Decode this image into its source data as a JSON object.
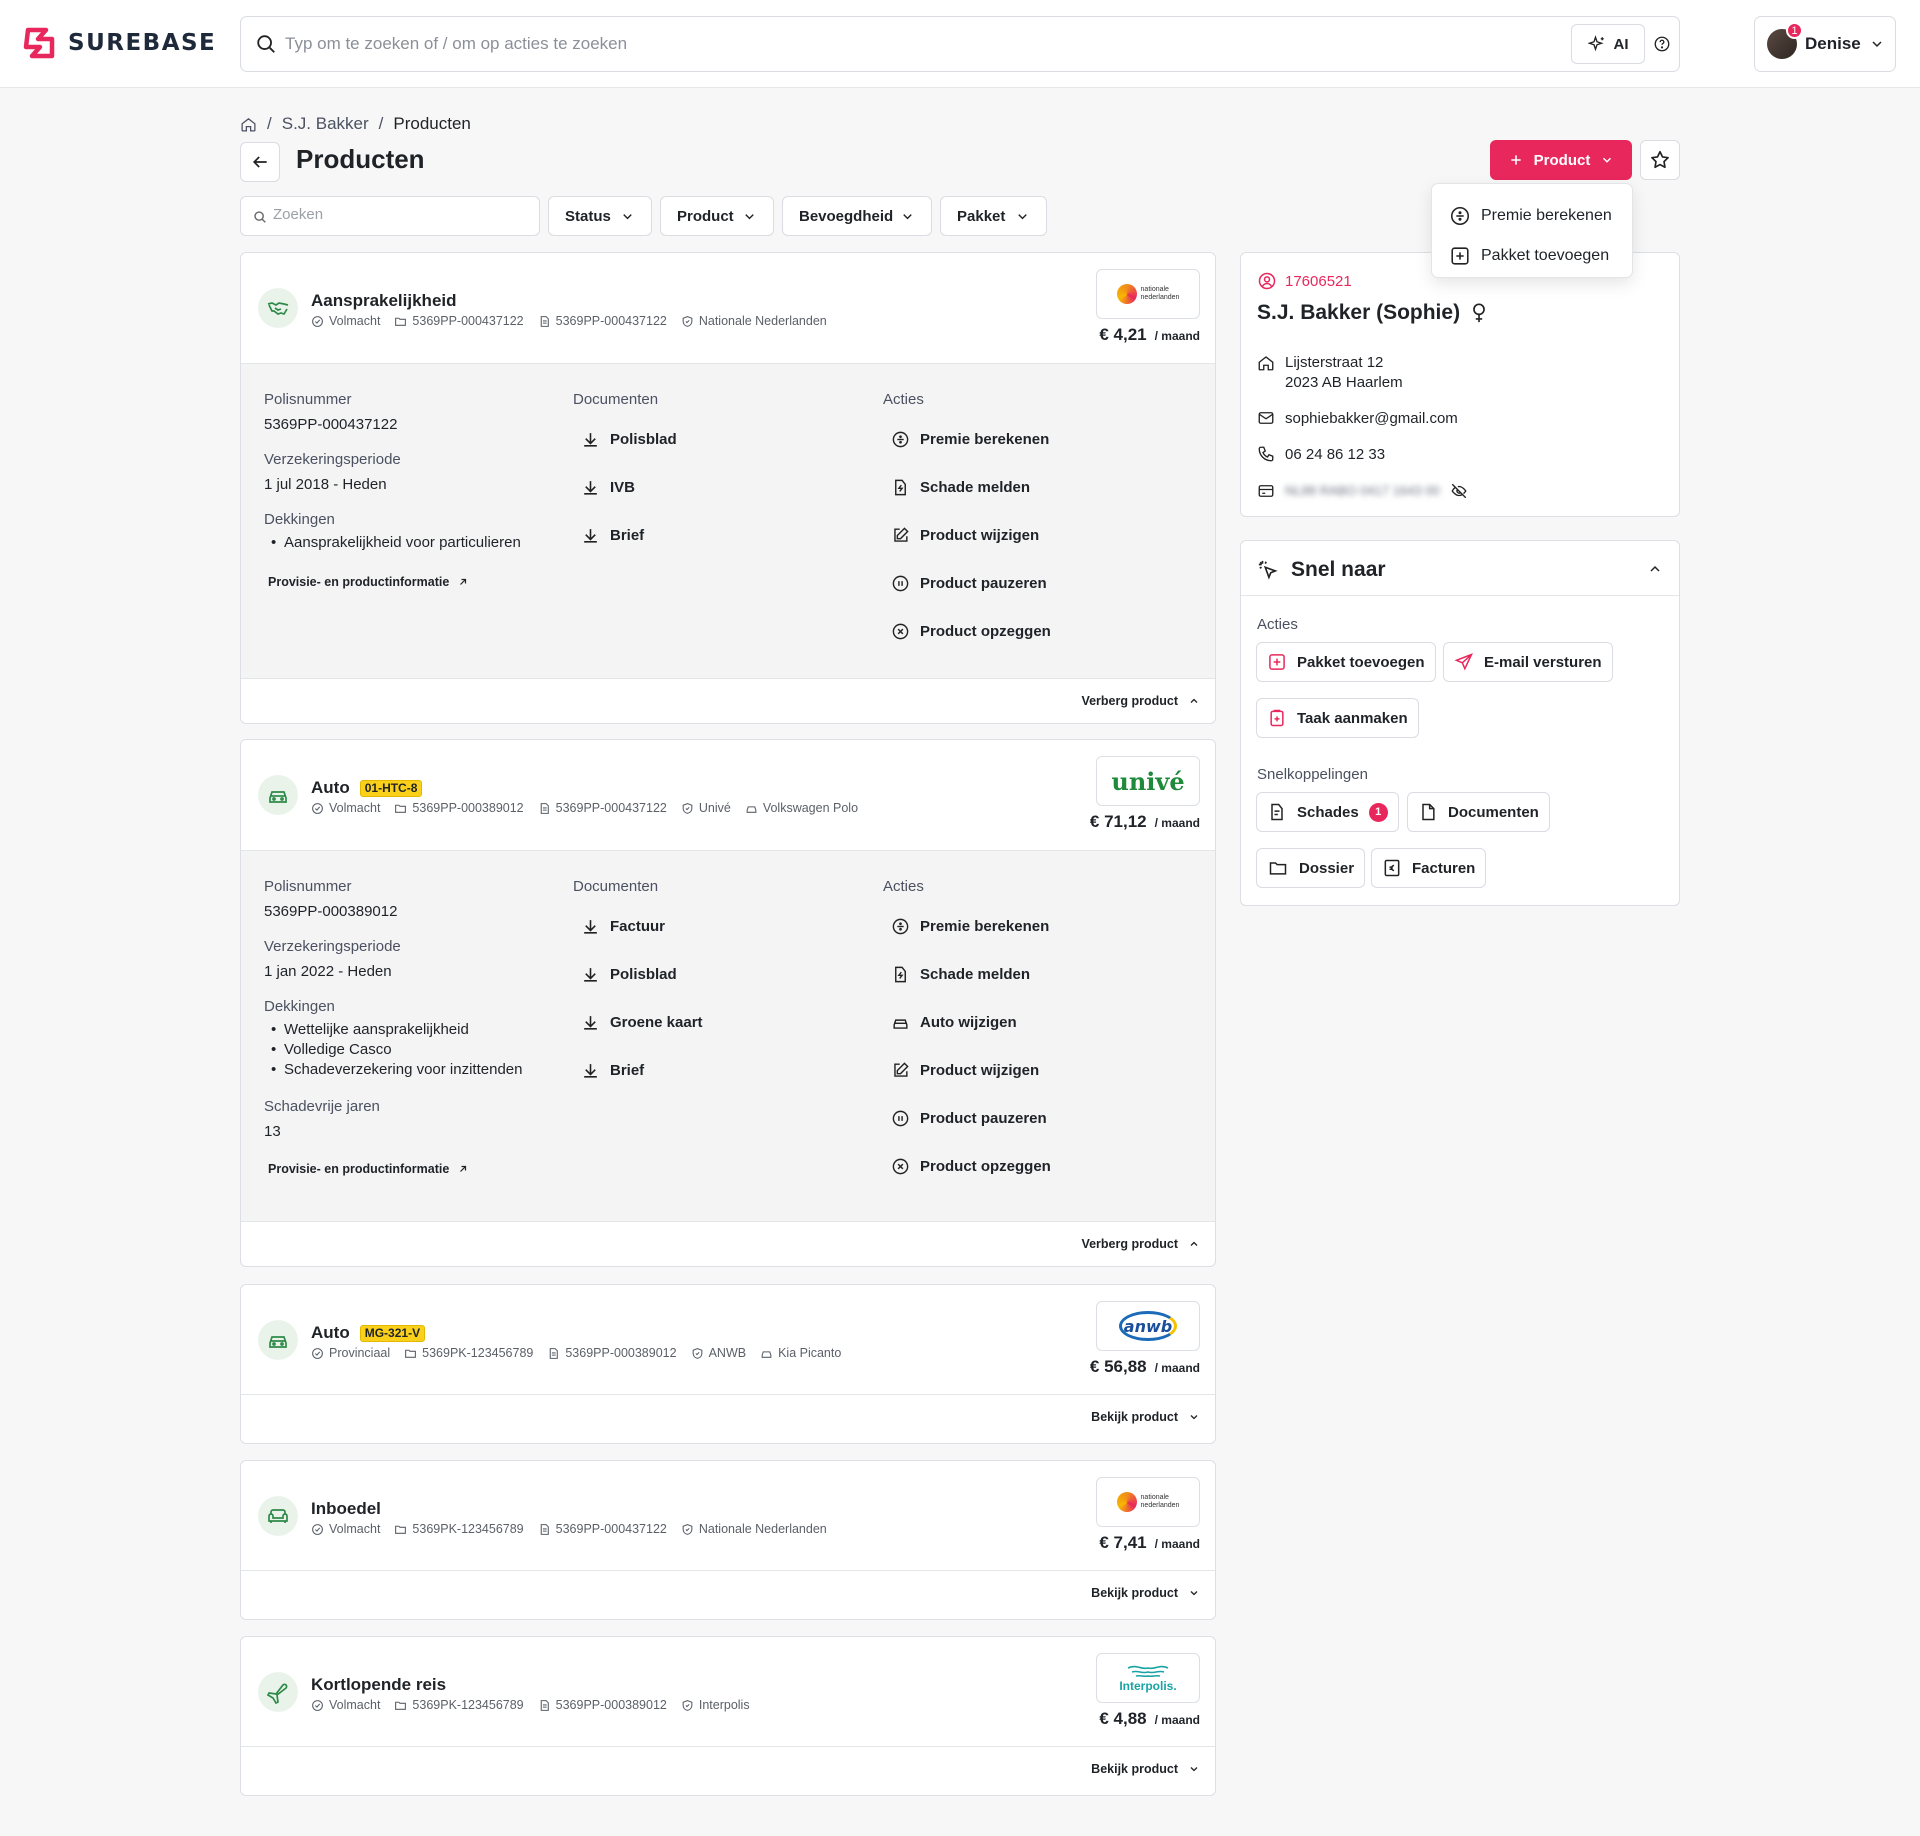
{
  "brand": {
    "name": "SUREBASE",
    "accent": "#e8275c"
  },
  "search": {
    "placeholder": "Typ om te zoeken of / om op acties te zoeken",
    "ai_label": "AI"
  },
  "user": {
    "name": "Denise",
    "notifications": "1"
  },
  "breadcrumb": {
    "client": "S.J. Bakker",
    "current": "Producten"
  },
  "page": {
    "title": "Producten",
    "add_button": "Product"
  },
  "add_menu": {
    "items": [
      "Premie berekenen",
      "Pakket toevoegen"
    ]
  },
  "filters": {
    "search_placeholder": "Zoeken",
    "status": "Status",
    "product": "Product",
    "bevoegdheid": "Bevoegdheid",
    "pakket": "Pakket"
  },
  "labels": {
    "polisnummer": "Polisnummer",
    "periode": "Verzekeringsperiode",
    "dekkingen": "Dekkingen",
    "schadevrij": "Schadevrije jaren",
    "documenten": "Documenten",
    "acties": "Acties",
    "provisie": "Provisie- en productinformatie",
    "verberg": "Verberg product",
    "bekijk": "Bekijk product",
    "per_month": "/ maand"
  },
  "products": [
    {
      "title": "Aansprakelijkheid",
      "plate": "",
      "bevoegdheid": "Volmacht",
      "dossier": "5369PP-000437122",
      "polis": "5369PP-000437122",
      "insurer": "Nationale Nederlanden",
      "vehicle": "",
      "price": "€ 4,21",
      "polisnummer": "5369PP-000437122",
      "periode": "1 jul 2018 - Heden",
      "dekkingen": [
        "Aansprakelijkheid voor particulieren"
      ],
      "schadevrij": "",
      "documenten": [
        "Polisblad",
        "IVB",
        "Brief"
      ],
      "acties": [
        "Premie berekenen",
        "Schade melden",
        "Product wijzigen",
        "Product pauzeren",
        "Product opzeggen"
      ]
    },
    {
      "title": "Auto",
      "plate": "01-HTC-8",
      "bevoegdheid": "Volmacht",
      "dossier": "5369PP-000389012",
      "polis": "5369PP-000437122",
      "insurer": "Univé",
      "vehicle": "Volkswagen Polo",
      "price": "€ 71,12",
      "polisnummer": "5369PP-000389012",
      "periode": "1 jan 2022 - Heden",
      "dekkingen": [
        "Wettelijke aansprakelijkheid",
        "Volledige Casco",
        "Schadeverzekering voor inzittenden"
      ],
      "schadevrij": "13",
      "documenten": [
        "Factuur",
        "Polisblad",
        "Groene kaart",
        "Brief"
      ],
      "acties": [
        "Premie berekenen",
        "Schade melden",
        "Auto wijzigen",
        "Product wijzigen",
        "Product pauzeren",
        "Product opzeggen"
      ]
    },
    {
      "title": "Auto",
      "plate": "MG-321-V",
      "bevoegdheid": "Provinciaal",
      "dossier": "5369PK-123456789",
      "polis": "5369PP-000389012",
      "insurer": "ANWB",
      "vehicle": "Kia Picanto",
      "price": "€ 56,88"
    },
    {
      "title": "Inboedel",
      "plate": "",
      "bevoegdheid": "Volmacht",
      "dossier": "5369PK-123456789",
      "polis": "5369PP-000437122",
      "insurer": "Nationale Nederlanden",
      "vehicle": "",
      "price": "€ 7,41"
    },
    {
      "title": "Kortlopende reis",
      "plate": "",
      "bevoegdheid": "Volmacht",
      "dossier": "5369PK-123456789",
      "polis": "5369PP-000389012",
      "insurer": "Interpolis",
      "vehicle": "",
      "price": "€ 4,88"
    }
  ],
  "insurer_logos": {
    "nn": [
      "nationale",
      "nederlanden"
    ],
    "unive": "univé",
    "anwb": "anwb",
    "interpolis": "Interpolis."
  },
  "client": {
    "id": "17606521",
    "name": "S.J. Bakker (Sophie)",
    "street": "Lijsterstraat 12",
    "city": "2023 AB Haarlem",
    "email": "sophiebakker@gmail.com",
    "phone": "06 24 86 12 33",
    "iban": "NL88 RABO 0417 1643 00"
  },
  "snel": {
    "title": "Snel naar",
    "acties_label": "Acties",
    "acties": [
      "Pakket toevoegen",
      "E-mail versturen",
      "Taak aanmaken"
    ],
    "links_label": "Snelkoppelingen",
    "links": [
      "Schades",
      "Documenten",
      "Dossier",
      "Facturen"
    ],
    "schades_badge": "1"
  }
}
